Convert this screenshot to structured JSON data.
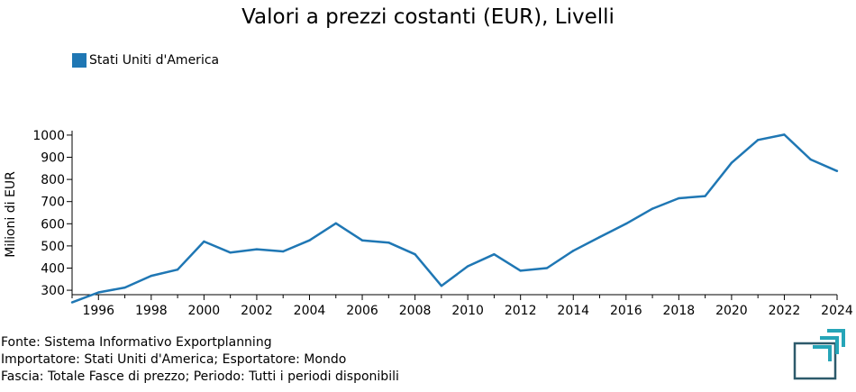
{
  "chart_data": {
    "type": "line",
    "title": "Valori a prezzi costanti (EUR), Livelli",
    "ylabel": "Milioni di EUR",
    "xlabel": "",
    "xlim": [
      1995,
      2024
    ],
    "ylim": [
      280,
      1020
    ],
    "yticks": [
      300,
      400,
      500,
      600,
      700,
      800,
      900,
      1000
    ],
    "xticks": [
      1996,
      1998,
      2000,
      2002,
      2004,
      2006,
      2008,
      2010,
      2012,
      2014,
      2016,
      2018,
      2020,
      2022,
      2024
    ],
    "legend_position": "top-left",
    "grid": false,
    "series": [
      {
        "name": "Stati Uniti d'America",
        "color": "#1f77b4",
        "x": [
          1995,
          1996,
          1997,
          1998,
          1999,
          2000,
          2001,
          2002,
          2003,
          2004,
          2005,
          2006,
          2007,
          2008,
          2009,
          2010,
          2011,
          2012,
          2013,
          2014,
          2015,
          2016,
          2017,
          2018,
          2019,
          2020,
          2021,
          2022,
          2023,
          2024
        ],
        "values": [
          245,
          290,
          312,
          365,
          393,
          520,
          470,
          485,
          475,
          525,
          602,
          525,
          515,
          462,
          320,
          408,
          462,
          388,
          400,
          478,
          540,
          600,
          668,
          715,
          725,
          875,
          978,
          1002,
          890,
          838
        ]
      }
    ]
  },
  "footer": {
    "line1": "Fonte: Sistema Informativo Exportplanning",
    "line2": "Importatore: Stati Uniti d'America; Esportatore: Mondo",
    "line3": "Fascia: Totale Fasce di prezzo; Periodo: Tutti i periodi disponibili"
  },
  "logo_icon": "exportplanning-logo-icon"
}
